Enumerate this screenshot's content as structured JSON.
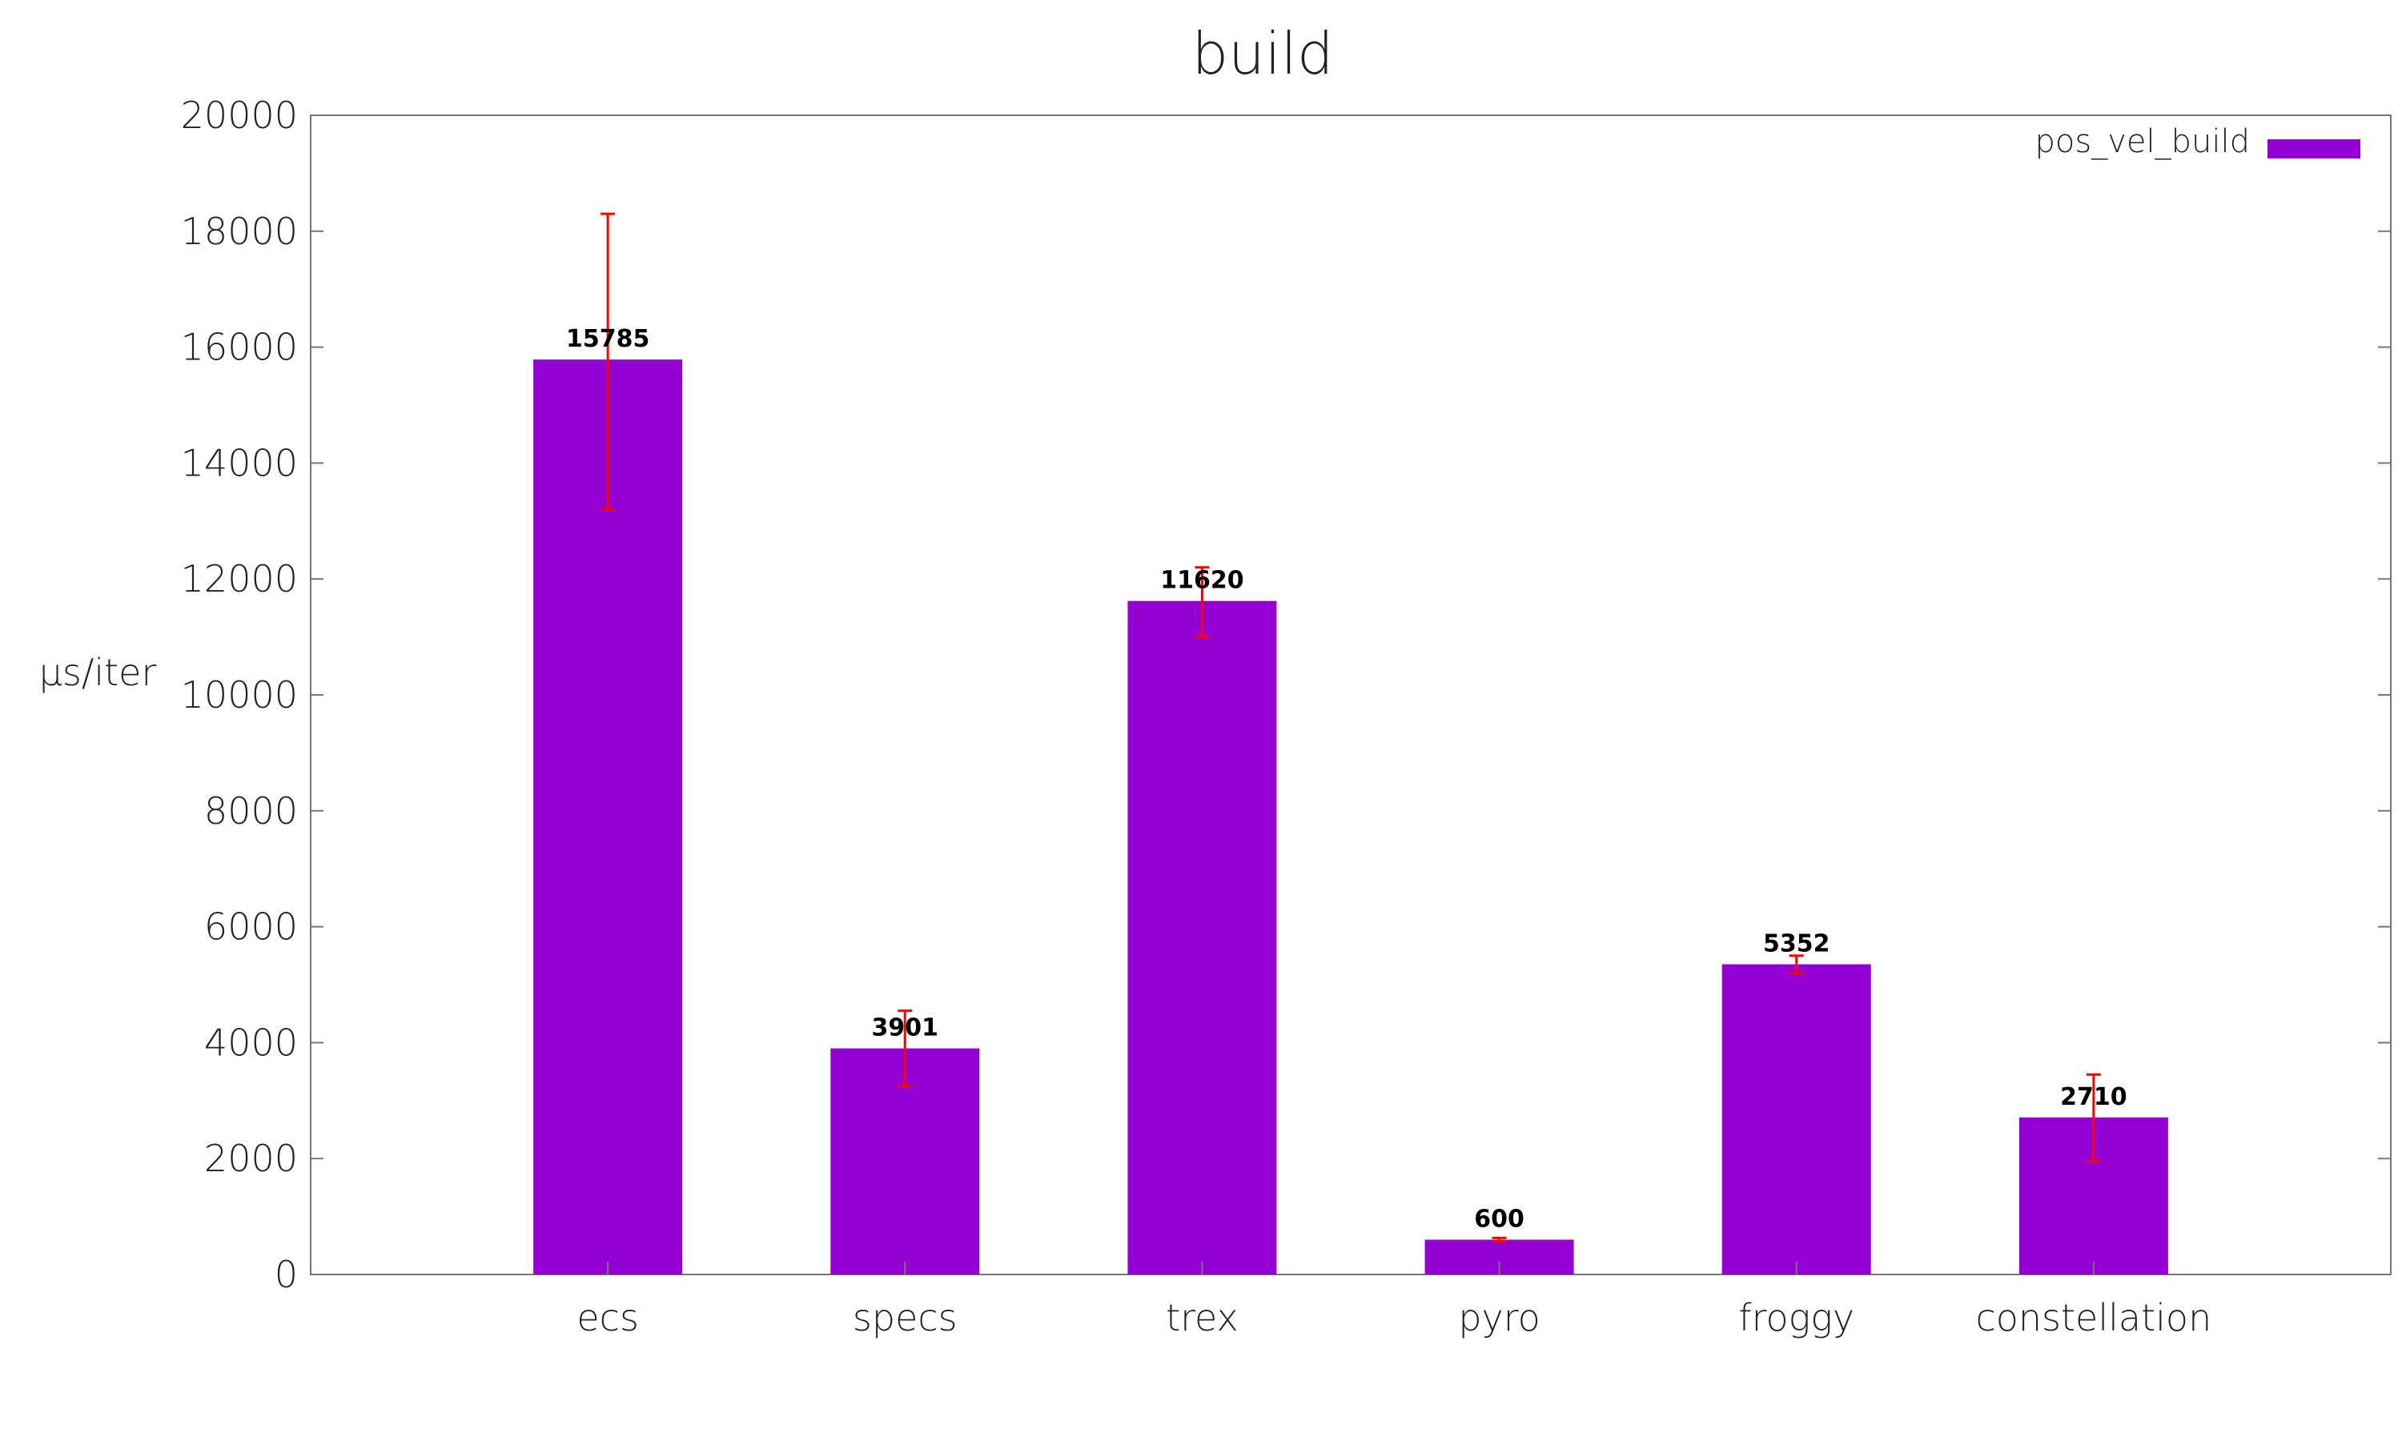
{
  "chart_data": {
    "type": "bar",
    "title": "build",
    "xlabel": "",
    "ylabel": "µs/iter",
    "categories": [
      "ecs",
      "specs",
      "trex",
      "pyro",
      "froggy",
      "constellation"
    ],
    "series": [
      {
        "name": "pos_vel_build",
        "values": [
          15785,
          3901,
          11620,
          600,
          5352,
          2710
        ],
        "errors": [
          [
            13200,
            18300
          ],
          [
            3250,
            4550
          ],
          [
            11000,
            12200
          ],
          [
            570,
            630
          ],
          [
            5200,
            5500
          ],
          [
            1950,
            3450
          ]
        ]
      }
    ],
    "ylim": [
      0,
      20000
    ],
    "yticks": [
      0,
      2000,
      4000,
      6000,
      8000,
      10000,
      12000,
      14000,
      16000,
      18000,
      20000
    ],
    "grid": false,
    "legend_position": "top-right",
    "colors": {
      "bar": "#9400d3",
      "error_bar": "#ff0000",
      "axis": "#777777",
      "text": "#222222"
    }
  }
}
